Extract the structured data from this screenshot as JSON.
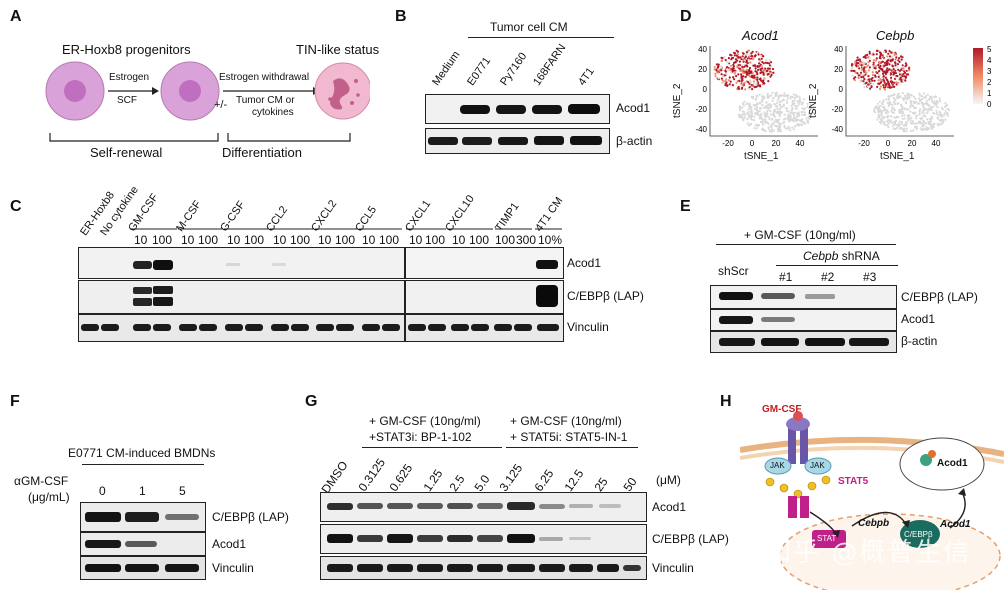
{
  "panels": [
    "A",
    "B",
    "C",
    "D",
    "E",
    "F",
    "G",
    "H"
  ],
  "panel_a": {
    "left_title": "ER-Hoxb8 progenitors",
    "right_title": "TIN-like status",
    "arrow1_top": "Estrogen",
    "arrow1_bottom": "SCF",
    "arrow2_top": "Estrogen withdrawal",
    "arrow2_prefix": "+/-",
    "arrow2_bottom_1": "Tumor CM or",
    "arrow2_bottom_2": "cytokines",
    "bracket_left": "Self-renewal",
    "bracket_right": "Differentiation"
  },
  "panel_b": {
    "header": "Tumor cell CM",
    "lanes": [
      "Medium",
      "E0771",
      "Py7160",
      "168FARN",
      "4T1"
    ],
    "row_labels": [
      "Acod1",
      "β-actin"
    ]
  },
  "panel_c": {
    "lanes_top": [
      "ER-Hoxb8",
      "No cytokine",
      "GM-CSF",
      "M-CSF",
      "G-CSF",
      "CCL2",
      "CXCL2",
      "CCL5",
      "CXCL1",
      "CXCL10",
      "TIMP1",
      "4T1 CM"
    ],
    "doses": [
      "10",
      "100",
      "10",
      "100",
      "10",
      "100",
      "10",
      "100",
      "10",
      "100",
      "10",
      "100",
      "10",
      "100",
      "10",
      "100",
      "100",
      "300",
      "10%"
    ],
    "row_labels": [
      "Acod1",
      "C/EBPβ (LAP)",
      "Vinculin"
    ]
  },
  "panel_d": {
    "plots": [
      {
        "title": "Acod1",
        "xlabel": "tSNE_1",
        "ylabel": "tSNE_2"
      },
      {
        "title": "Cebpb",
        "xlabel": "tSNE_1",
        "ylabel": "tSNE_2"
      }
    ],
    "x_ticks": [
      "-20",
      "0",
      "20",
      "40"
    ],
    "y_ticks": [
      "40",
      "20",
      "0",
      "-20",
      "-40"
    ],
    "colorbar_ticks": [
      "5",
      "4",
      "3",
      "2",
      "1",
      "0"
    ]
  },
  "panel_e": {
    "header": "+ GM-CSF (10ng/ml)",
    "sub_header": "Cebpb",
    "sub_header_suffix": " shRNA",
    "lanes": [
      "shScr",
      "#1",
      "#2",
      "#3"
    ],
    "row_labels": [
      "C/EBPβ (LAP)",
      "Acod1",
      "β-actin"
    ]
  },
  "panel_f": {
    "header": "E0771 CM-induced BMDNs",
    "dose_label_1": "αGM-CSF",
    "dose_label_2": "(μg/mL)",
    "lanes": [
      "0",
      "1",
      "5"
    ],
    "row_labels": [
      "C/EBPβ (LAP)",
      "Acod1",
      "Vinculin"
    ]
  },
  "panel_g": {
    "header_left_1": "+ GM-CSF (10ng/ml)",
    "header_left_2": "+STAT3i: BP-1-102",
    "header_right_1": "+ GM-CSF (10ng/ml)",
    "header_right_2": "+ STAT5i: STAT5-IN-1",
    "lanes": [
      "DMSO",
      "0.3125",
      "0.625",
      "1.25",
      "2.5",
      "5.0",
      "3.125",
      "6.25",
      "12.5",
      "25",
      "50"
    ],
    "unit": "(μM)",
    "row_labels": [
      "Acod1",
      "C/EBPβ (LAP)",
      "Vinculin"
    ]
  },
  "panel_h": {
    "gmcsf": "GM-CSF",
    "jak": "JAK",
    "stat5": "STAT5",
    "stat": "STAT",
    "acod1_top": "Acod1",
    "cebpb_gene": "Cebpb",
    "cebp_protein": "C/EBPβ",
    "acod1_gene": "Acod1"
  },
  "watermark": "知乎 @概普生信",
  "colors": {
    "tsne_high": "#b2182b",
    "tsne_low": "#d9d9d9",
    "cell_fill": "#d9a3d9",
    "cell_nucleus": "#c06fc0",
    "tin_fill": "#f2b8cf"
  }
}
